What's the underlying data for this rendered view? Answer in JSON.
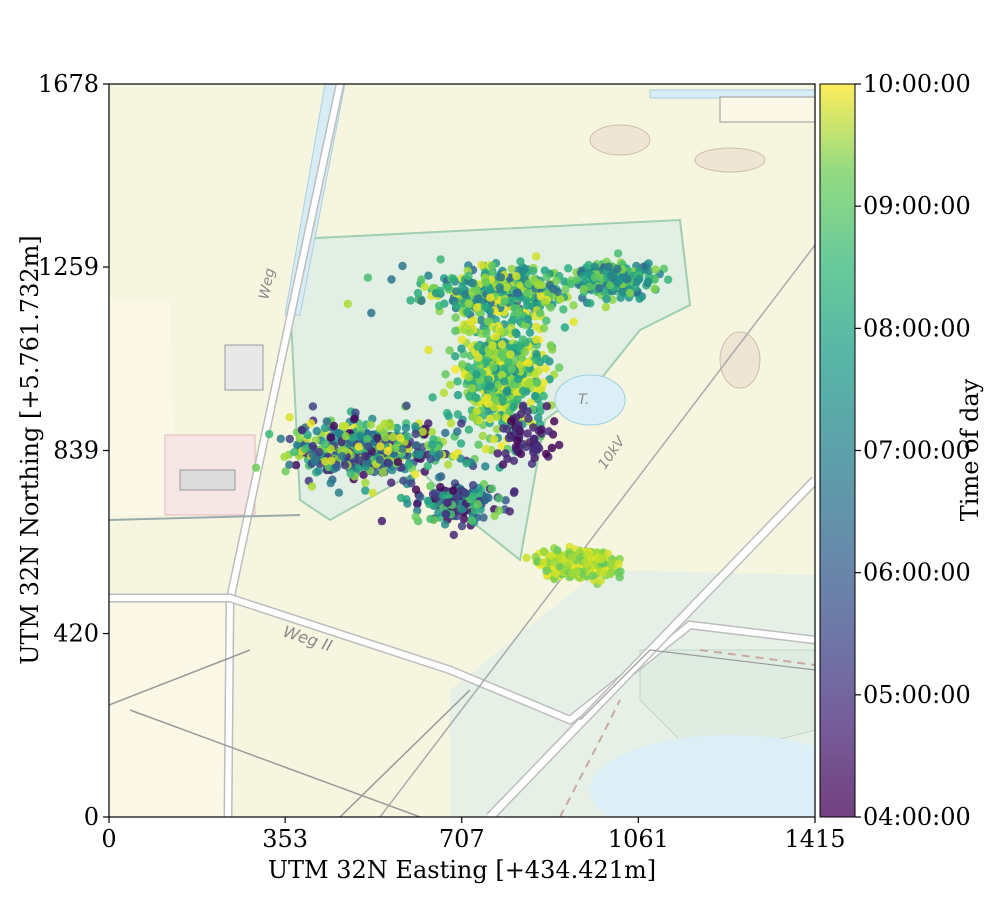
{
  "chart_data": {
    "type": "scatter",
    "title": "",
    "xlabel": "UTM 32N Easting [+434.421m]",
    "ylabel": "UTM 32N Northing [+5.761.732m]",
    "xlim": [
      0,
      1415
    ],
    "ylim": [
      0,
      1678
    ],
    "x_ticks": [
      0,
      353,
      707,
      1061,
      1415
    ],
    "y_ticks": [
      0,
      420,
      839,
      1259,
      1678
    ],
    "x_tick_labels": [
      "0",
      "353",
      "707",
      "1061",
      "1415"
    ],
    "y_tick_labels": [
      "0",
      "420",
      "839",
      "1259",
      "1678"
    ],
    "grid": false,
    "basemap": "topographic map",
    "map_labels": [
      "Weg",
      "Weg II",
      "10kV",
      "T."
    ],
    "colormap": "viridis",
    "colorbar": {
      "label": "Time of day",
      "min": "04:00:00",
      "max": "10:00:00",
      "tick_labels": [
        "04:00:00",
        "05:00:00",
        "06:00:00",
        "07:00:00",
        "08:00:00",
        "09:00:00",
        "10:00:00"
      ]
    },
    "point_clusters": [
      {
        "center": [
          780,
          1200
        ],
        "spread": [
          150,
          60
        ],
        "count": 420,
        "time_range": [
          "06:00:00",
          "10:00:00"
        ]
      },
      {
        "center": [
          1010,
          1235
        ],
        "spread": [
          80,
          35
        ],
        "count": 260,
        "time_range": [
          "06:00:00",
          "09:00:00"
        ]
      },
      {
        "center": [
          790,
          1010
        ],
        "spread": [
          90,
          130
        ],
        "count": 520,
        "time_range": [
          "07:00:00",
          "10:00:00"
        ]
      },
      {
        "center": [
          520,
          840
        ],
        "spread": [
          150,
          70
        ],
        "count": 480,
        "time_range": [
          "04:00:00",
          "10:00:00"
        ]
      },
      {
        "center": [
          700,
          720
        ],
        "spread": [
          90,
          50
        ],
        "count": 180,
        "time_range": [
          "04:00:00",
          "09:00:00"
        ]
      },
      {
        "center": [
          940,
          580
        ],
        "spread": [
          70,
          30
        ],
        "count": 380,
        "time_range": [
          "08:30:00",
          "10:00:00"
        ]
      },
      {
        "center": [
          840,
          860
        ],
        "spread": [
          60,
          60
        ],
        "count": 60,
        "time_range": [
          "04:00:00",
          "05:00:00"
        ]
      }
    ]
  }
}
